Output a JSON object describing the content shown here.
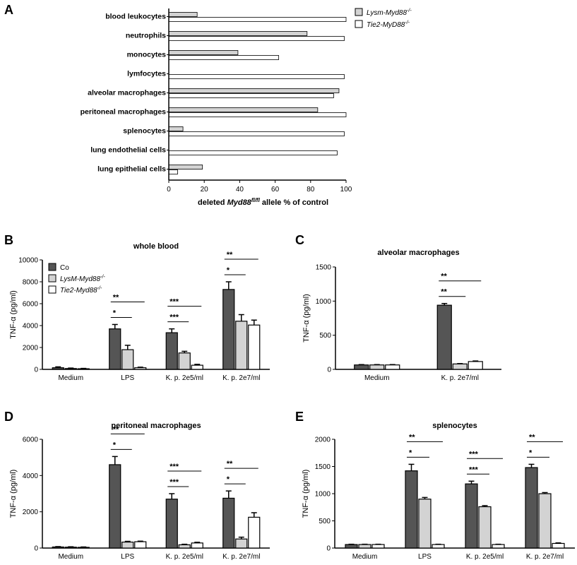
{
  "colors": {
    "co": "#555555",
    "lysm": "#d3d3d3",
    "tie2": "#ffffff"
  },
  "panel_letters": [
    "A",
    "B",
    "C",
    "D",
    "E"
  ],
  "chart_data": [
    {
      "panel": "A",
      "type": "bar",
      "orientation": "horizontal",
      "xlabel_parts": [
        "deleted ",
        "Myd88",
        "fl/fl",
        " allele % of control"
      ],
      "xlim": [
        0,
        100
      ],
      "xticks": [
        "0",
        "20",
        "40",
        "60",
        "80",
        "100"
      ],
      "categories": [
        "blood leukocytes",
        "neutrophils",
        "monocytes",
        "lymfocytes",
        "alveolar macrophages",
        "peritoneal macrophages",
        "splenocytes",
        "lung endothelial cells",
        "lung epithelial cells"
      ],
      "series": [
        {
          "name": "Lysm-Myd88",
          "sup": "-/-",
          "values": [
            16,
            78,
            39,
            0,
            96,
            84,
            8,
            0,
            19
          ]
        },
        {
          "name": "Tie2-MyD88",
          "sup": "-/-",
          "values": [
            100,
            99,
            62,
            99,
            93,
            100,
            99,
            95,
            5
          ]
        }
      ]
    },
    {
      "panel": "B",
      "type": "bar",
      "title": "whole blood",
      "ylabel": "TNF-α (pg/ml)",
      "ylim": [
        0,
        10000
      ],
      "yticks": [
        "0",
        "2000",
        "4000",
        "6000",
        "8000",
        "10000"
      ],
      "categories": [
        "Medium",
        "LPS",
        "K. p. 2e5/ml",
        "K. p. 2e7/ml"
      ],
      "legend": [
        {
          "name": "Co",
          "sup": ""
        },
        {
          "name": "LysM-Myd88",
          "sup": "-/-"
        },
        {
          "name": "Tie2-Myd88",
          "sup": "-/-"
        }
      ],
      "series": [
        {
          "values": [
            150,
            3700,
            3350,
            7300
          ],
          "errors": [
            80,
            400,
            350,
            700
          ]
        },
        {
          "values": [
            80,
            1800,
            1500,
            4400
          ],
          "errors": [
            40,
            400,
            150,
            600
          ]
        },
        {
          "values": [
            60,
            150,
            380,
            4050
          ],
          "errors": [
            30,
            50,
            80,
            450
          ]
        }
      ],
      "significance": [
        {
          "group": 1,
          "short": "*",
          "long": "**"
        },
        {
          "group": 2,
          "short": "***",
          "long": "***"
        },
        {
          "group": 3,
          "short": "*",
          "long": "**"
        }
      ]
    },
    {
      "panel": "C",
      "type": "bar",
      "title": "alveolar macrophages",
      "ylabel": "TNF-α (pg/ml)",
      "ylim": [
        0,
        1500
      ],
      "yticks": [
        "0",
        "500",
        "1000",
        "1500"
      ],
      "categories": [
        "Medium",
        "K. p. 2e7/ml"
      ],
      "series": [
        {
          "values": [
            65,
            940
          ],
          "errors": [
            5,
            25
          ]
        },
        {
          "values": [
            65,
            80
          ],
          "errors": [
            5,
            5
          ]
        },
        {
          "values": [
            65,
            115
          ],
          "errors": [
            5,
            8
          ]
        }
      ],
      "significance": [
        {
          "group": 1,
          "short": "**",
          "long": "**"
        }
      ]
    },
    {
      "panel": "D",
      "type": "bar",
      "title": "peritoneal macrophages",
      "ylabel": "TNF-α (pg/ml)",
      "ylim": [
        0,
        6000
      ],
      "yticks": [
        "0",
        "2000",
        "4000",
        "6000"
      ],
      "categories": [
        "Medium",
        "LPS",
        "K. p. 2e5/ml",
        "K. p. 2e7/ml"
      ],
      "series": [
        {
          "values": [
            60,
            4600,
            2700,
            2750
          ],
          "errors": [
            20,
            450,
            300,
            400
          ]
        },
        {
          "values": [
            50,
            330,
            180,
            500
          ],
          "errors": [
            20,
            40,
            30,
            100
          ]
        },
        {
          "values": [
            40,
            350,
            280,
            1700
          ],
          "errors": [
            20,
            30,
            40,
            250
          ]
        }
      ],
      "significance": [
        {
          "group": 1,
          "short": "*",
          "long": "**"
        },
        {
          "group": 2,
          "short": "***",
          "long": "***"
        },
        {
          "group": 3,
          "short": "*",
          "long": "**"
        }
      ]
    },
    {
      "panel": "E",
      "type": "bar",
      "title": "splenocytes",
      "ylabel": "TNF-α (pg/ml)",
      "ylim": [
        0,
        2000
      ],
      "yticks": [
        "0",
        "500",
        "1000",
        "1500",
        "2000"
      ],
      "categories": [
        "Medium",
        "LPS",
        "K. p. 2e5/ml",
        "K. p. 2e7/ml"
      ],
      "series": [
        {
          "values": [
            65,
            1420,
            1180,
            1480
          ],
          "errors": [
            5,
            120,
            50,
            60
          ]
        },
        {
          "values": [
            65,
            900,
            760,
            1000
          ],
          "errors": [
            5,
            30,
            20,
            20
          ]
        },
        {
          "values": [
            65,
            65,
            65,
            85
          ],
          "errors": [
            5,
            5,
            5,
            10
          ]
        }
      ],
      "significance": [
        {
          "group": 1,
          "short": "*",
          "long": "**"
        },
        {
          "group": 2,
          "short": "***",
          "long": "***"
        },
        {
          "group": 3,
          "short": "*",
          "long": "**"
        }
      ]
    }
  ]
}
